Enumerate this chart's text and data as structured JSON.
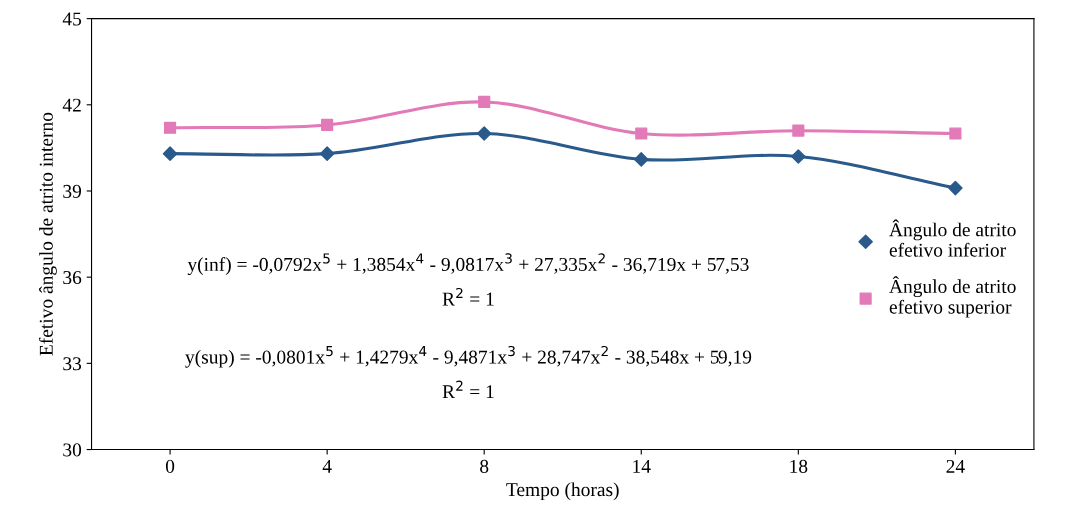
{
  "chart_data": {
    "type": "line",
    "xlabel": "Tempo (horas)",
    "ylabel": "Efetivo ângulo de atrito interno",
    "categories": [
      "0",
      "4",
      "8",
      "14",
      "18",
      "24"
    ],
    "series": [
      {
        "name": "Ângulo de atrito efetivo inferior",
        "color": "#2a5a8c",
        "marker": "diamond",
        "values": [
          40.3,
          40.3,
          41.0,
          40.1,
          40.2,
          39.1
        ]
      },
      {
        "name": "Ângulo de atrito efetivo superior",
        "color": "#e27ab8",
        "marker": "square",
        "values": [
          41.2,
          41.3,
          42.1,
          41.0,
          41.1,
          41.0
        ]
      }
    ],
    "ylim": [
      30,
      45
    ],
    "yticks": [
      30,
      33,
      36,
      39,
      42,
      45
    ],
    "grid": false,
    "legend": "right",
    "annotations": [
      "y(inf) = -0,0792x$^{5}$ + 1,3854x$^{4}$ - 9,0817x$^{3}$ + 27,335x$^{2}$ - 36,719x + 57,53",
      "R$^{2}$ = 1",
      "y(sup) = -0,0801x$^{5}$ + 1,4279x$^{4}$ - 9,4871x$^{3}$ + 28,747x$^{2}$ - 38,548x + 59,19",
      "R$^{2}$ = 1"
    ]
  }
}
